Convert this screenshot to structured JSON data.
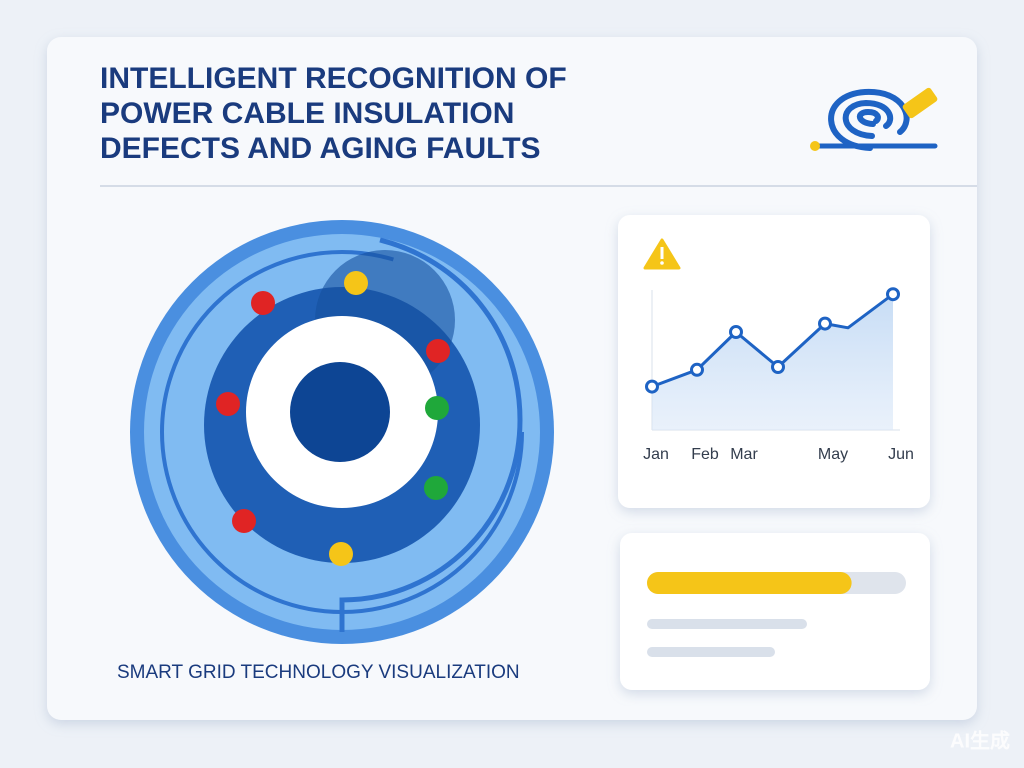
{
  "header": {
    "title_lines": [
      "INTELLIGENT RECOGNITION OF",
      "POWER CABLE INSULATION",
      "DEFECTS AND AGING FAULTS"
    ]
  },
  "caption": "SMART GRID TECHNOLOGY VISUALIZATION",
  "chart_data": {
    "type": "line",
    "categories": [
      "Jan",
      "Feb",
      "Mar",
      null,
      "May",
      null,
      "Jun"
    ],
    "values": [
      31,
      43,
      70,
      45,
      76,
      73,
      97
    ],
    "markers": [
      true,
      true,
      true,
      true,
      true,
      false,
      true
    ],
    "ylim": [
      0,
      100
    ],
    "color": "#1e63c4"
  },
  "progress": {
    "value": 79,
    "max": 100,
    "color": "#f5c518"
  },
  "watermark": "AI生成"
}
